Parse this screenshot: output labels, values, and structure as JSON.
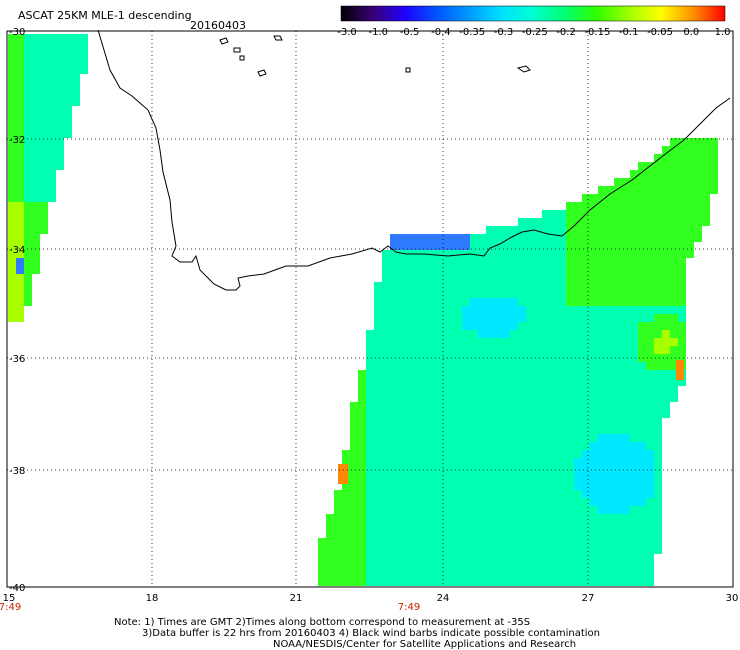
{
  "header": {
    "title": "ASCAT 25KM MLE-1 descending",
    "date": "20160403"
  },
  "colorbar": {
    "labels": [
      "-3.0",
      "-1.0",
      "-0.5",
      "-0.4",
      "-0.35",
      "-0.3",
      "-0.25",
      "-0.2",
      "-0.15",
      "-0.1",
      "-0.05",
      "0.0",
      "1.0"
    ],
    "colors": [
      "#000000",
      "#3a0075",
      "#1f00ff",
      "#0055ff",
      "#0099ff",
      "#00e0ff",
      "#00ffd0",
      "#00ff70",
      "#30ff00",
      "#a0ff00",
      "#ffff00",
      "#ff9000",
      "#ff0000"
    ]
  },
  "axes": {
    "longitude_ticks": [
      "15",
      "18",
      "21",
      "24",
      "27",
      "30"
    ],
    "latitude_ticks": [
      "-30",
      "-32",
      "-34",
      "-36",
      "-38",
      "-40"
    ],
    "time_labels": [
      "7:49",
      "7:49"
    ],
    "time_label_color": "#cc2200"
  },
  "notes": {
    "line1": "Note: 1) Times are GMT 2)Times along bottom correspond to measurement at -35S",
    "line2": "3)Data buffer is 22 hrs from 20160403 4) Black wind barbs indicate possible contamination",
    "line3": "NOAA/NESDIS/Center for Satellite Applications and Research"
  }
}
